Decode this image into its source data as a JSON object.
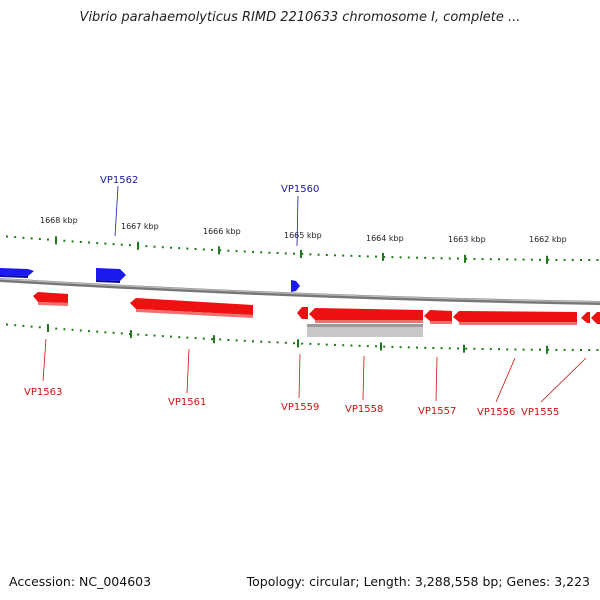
{
  "title": "Vibrio parahaemolyticus RIMD 2210633 chromosome I, complete ...",
  "accession": "Accession: NC_004603",
  "stats": "Topology: circular; Length: 3,288,558 bp; Genes: 3,223",
  "colors": {
    "forward_gene": "#1a1aee",
    "reverse_gene": "#ee1111",
    "backbone": "#888888",
    "ticks": "#1f7a1f",
    "label_forward": "#1a1aa0",
    "label_reverse": "#cc1111",
    "other_feature": "#bbbbbb"
  },
  "scale_labels": [
    "1668 kbp",
    "1667 kbp",
    "1666 kbp",
    "1665 kbp",
    "1664 kbp",
    "1663 kbp",
    "1662 kbp"
  ],
  "forward_gene_labels": [
    "VP1562",
    "VP1560"
  ],
  "reverse_gene_labels": [
    "VP1563",
    "VP1561",
    "VP1559",
    "VP1558",
    "VP1557",
    "VP1556",
    "VP1555"
  ]
}
